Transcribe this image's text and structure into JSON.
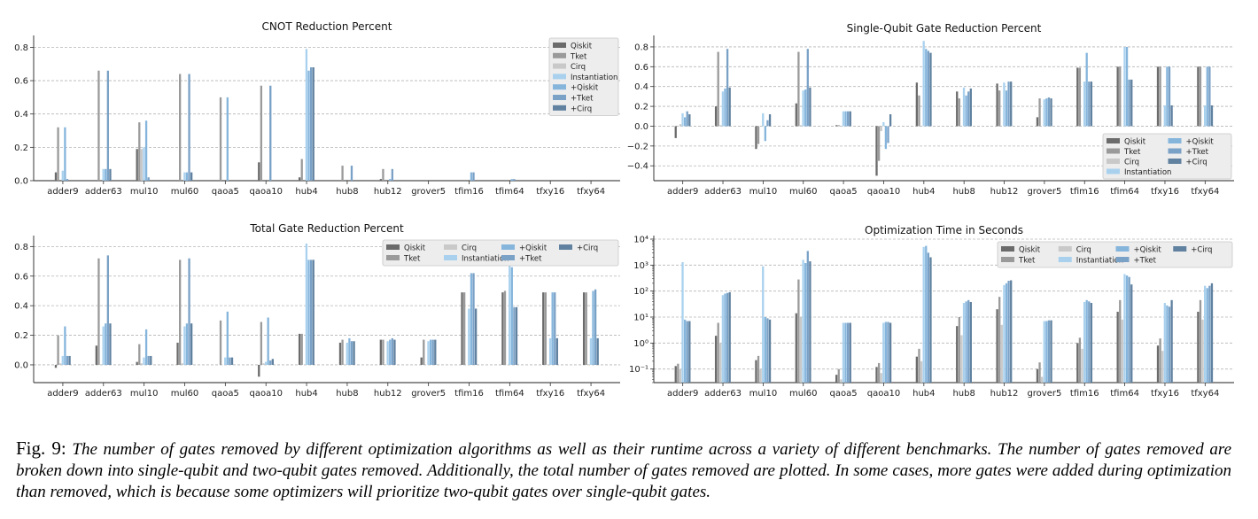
{
  "caption": {
    "label": "Fig. 9:",
    "text": "The number of gates removed by different optimization algorithms as well as their runtime across a variety of different benchmarks. The number of gates removed are broken down into single-qubit and two-qubit gates removed. Additionally, the total number of gates removed are plotted. In some cases, more gates were added during optimization than removed, which is because some optimizers will prioritize two-qubit gates over single-qubit gates."
  },
  "colors": {
    "Qiskit": "#6b6b6b",
    "Tket": "#9a9a9a",
    "Cirq": "#c9c9c9",
    "Instantiation": "#a9d1ee",
    "+Qiskit": "#86b5dc",
    "+Tket": "#7aa1c6",
    "+Cirq": "#60819f"
  },
  "chart_data": [
    {
      "type": "bar",
      "title": "CNOT Reduction Percent",
      "xlabel": "",
      "ylabel": "",
      "ylim": [
        0,
        0.85
      ],
      "yticks": [
        "0.0",
        "0.2",
        "0.4",
        "0.6",
        "0.8"
      ],
      "ytick_values": [
        0,
        0.2,
        0.4,
        0.6,
        0.8
      ],
      "grid": true,
      "legend": "top-right",
      "legend_cols": 1,
      "categories": [
        "adder9",
        "adder63",
        "mul10",
        "mul60",
        "qaoa5",
        "qaoa10",
        "hub4",
        "hub8",
        "hub12",
        "grover5",
        "tfim16",
        "tfim64",
        "tfxy16",
        "tfxy64"
      ],
      "series": [
        {
          "name": "Qiskit",
          "values": [
            0.05,
            0,
            0.19,
            0,
            0,
            0.11,
            0.02,
            0,
            0.01,
            0,
            0,
            0,
            0,
            0
          ]
        },
        {
          "name": "Tket",
          "values": [
            0.32,
            0.66,
            0.35,
            0.64,
            0.5,
            0.57,
            0.13,
            0.09,
            0.07,
            0,
            0,
            0,
            0,
            0
          ]
        },
        {
          "name": "Cirq",
          "values": [
            0,
            0,
            0.19,
            0,
            0,
            0,
            0,
            0,
            0,
            0,
            0,
            0,
            0,
            0
          ]
        },
        {
          "name": "Instantiation",
          "values": [
            0.06,
            0.07,
            0.2,
            0.05,
            0,
            0,
            0.79,
            0,
            0,
            0,
            0,
            0,
            0,
            0
          ]
        },
        {
          "name": "+Qiskit",
          "values": [
            0.32,
            0.07,
            0.36,
            0.05,
            0.5,
            0,
            0.66,
            0,
            0.01,
            0,
            0.05,
            0.01,
            0,
            0
          ]
        },
        {
          "name": "+Tket",
          "values": [
            0.01,
            0.66,
            0.02,
            0.64,
            0,
            0.57,
            0.68,
            0.09,
            0.07,
            0,
            0.05,
            0.01,
            0,
            0
          ]
        },
        {
          "name": "+Cirq",
          "values": [
            0,
            0.07,
            0,
            0.05,
            0,
            0,
            0.68,
            0,
            0,
            0,
            0,
            0,
            0,
            0
          ]
        }
      ]
    },
    {
      "type": "bar",
      "title": "Single-Qubit Gate Reduction Percent",
      "xlabel": "",
      "ylabel": "",
      "ylim": [
        -0.55,
        0.88
      ],
      "yticks": [
        "−0.4",
        "−0.2",
        "0.0",
        "0.2",
        "0.4",
        "0.6",
        "0.8"
      ],
      "ytick_values": [
        -0.4,
        -0.2,
        0,
        0.2,
        0.4,
        0.6,
        0.8
      ],
      "grid": true,
      "legend": "bottom-right",
      "legend_cols": 2,
      "categories": [
        "adder9",
        "adder63",
        "mul10",
        "mul60",
        "qaoa5",
        "qaoa10",
        "hub4",
        "hub8",
        "hub12",
        "grover5",
        "tfim16",
        "tfim64",
        "tfxy16",
        "tfxy64"
      ],
      "series": [
        {
          "name": "Qiskit",
          "values": [
            -0.12,
            0.2,
            -0.23,
            0.23,
            0.01,
            -0.5,
            0.44,
            0.35,
            0.43,
            0.09,
            0.59,
            0.6,
            0.6,
            0.6
          ]
        },
        {
          "name": "Tket",
          "values": [
            0,
            0.75,
            -0.18,
            0.75,
            0.01,
            -0.35,
            0.31,
            0.28,
            0.36,
            0.28,
            0.59,
            0.6,
            0.6,
            0.6
          ]
        },
        {
          "name": "Cirq",
          "values": [
            0.02,
            0.01,
            0,
            0.01,
            0,
            -0.05,
            0,
            0,
            0,
            0,
            0,
            0,
            0,
            0
          ]
        },
        {
          "name": "Instantiation",
          "values": [
            0.13,
            0.35,
            0.13,
            0.36,
            0.15,
            0.04,
            0.86,
            0.39,
            0.44,
            0.27,
            0.45,
            0.8,
            0.21,
            0.21
          ]
        },
        {
          "name": "+Qiskit",
          "values": [
            0.09,
            0.38,
            -0.15,
            0.37,
            0.15,
            -0.23,
            0.78,
            0.31,
            0.36,
            0.28,
            0.74,
            0.8,
            0.6,
            0.6
          ]
        },
        {
          "name": "+Tket",
          "values": [
            0.15,
            0.78,
            0.06,
            0.78,
            0.15,
            -0.17,
            0.76,
            0.35,
            0.45,
            0.29,
            0.45,
            0.47,
            0.6,
            0.6
          ]
        },
        {
          "name": "+Cirq",
          "values": [
            0.12,
            0.39,
            0.12,
            0.39,
            0.15,
            0.12,
            0.74,
            0.38,
            0.45,
            0.28,
            0.45,
            0.47,
            0.21,
            0.21
          ]
        }
      ]
    },
    {
      "type": "bar",
      "title": "Total Gate Reduction Percent",
      "xlabel": "",
      "ylabel": "",
      "ylim": [
        -0.12,
        0.85
      ],
      "yticks": [
        "0.0",
        "0.2",
        "0.4",
        "0.6",
        "0.8"
      ],
      "ytick_values": [
        0,
        0.2,
        0.4,
        0.6,
        0.8
      ],
      "grid": true,
      "legend": "top-right",
      "legend_cols": 4,
      "categories": [
        "adder9",
        "adder63",
        "mul10",
        "mul60",
        "qaoa5",
        "qaoa10",
        "hub4",
        "hub8",
        "hub12",
        "grover5",
        "tfim16",
        "tfim64",
        "tfxy16",
        "tfxy64"
      ],
      "series": [
        {
          "name": "Qiskit",
          "values": [
            -0.02,
            0.13,
            0.02,
            0.15,
            0,
            -0.08,
            0.21,
            0.15,
            0.17,
            0.05,
            0.49,
            0.49,
            0.49,
            0.49
          ]
        },
        {
          "name": "Tket",
          "values": [
            0.2,
            0.72,
            0.14,
            0.71,
            0.3,
            0.29,
            0.21,
            0.17,
            0.17,
            0.17,
            0.49,
            0.5,
            0.49,
            0.49
          ]
        },
        {
          "name": "Cirq",
          "values": [
            0.01,
            0,
            0.01,
            0.01,
            0,
            0.01,
            0,
            0,
            0,
            0,
            0,
            0,
            0,
            0
          ]
        },
        {
          "name": "Instantiation",
          "values": [
            0.06,
            0.26,
            0.05,
            0.26,
            0.05,
            0.02,
            0.82,
            0.15,
            0.16,
            0.16,
            0.38,
            0.67,
            0.18,
            0.18
          ]
        },
        {
          "name": "+Qiskit",
          "values": [
            0.26,
            0.28,
            0.24,
            0.28,
            0.36,
            0.32,
            0.71,
            0.18,
            0.17,
            0.17,
            0.62,
            0.66,
            0.49,
            0.5
          ]
        },
        {
          "name": "+Tket",
          "values": [
            0.06,
            0.74,
            0.06,
            0.72,
            0.05,
            0.03,
            0.71,
            0.16,
            0.18,
            0.17,
            0.62,
            0.39,
            0.49,
            0.51
          ]
        },
        {
          "name": "+Cirq",
          "values": [
            0.06,
            0.28,
            0.06,
            0.28,
            0.05,
            0.04,
            0.71,
            0.16,
            0.17,
            0.17,
            0.38,
            0.39,
            0.18,
            0.18
          ]
        }
      ]
    },
    {
      "type": "bar",
      "title": "Optimization Time in Seconds",
      "xlabel": "",
      "ylabel": "",
      "yscale": "log",
      "ylim": [
        0.03,
        10000
      ],
      "yticks": [
        "10⁻¹",
        "10⁰",
        "10¹",
        "10²",
        "10³",
        "10⁴"
      ],
      "ytick_values": [
        0.1,
        1,
        10,
        100,
        1000,
        10000
      ],
      "grid": true,
      "legend": "top-right",
      "legend_cols": 4,
      "categories": [
        "adder9",
        "adder63",
        "mul10",
        "mul60",
        "qaoa5",
        "qaoa10",
        "hub4",
        "hub8",
        "hub12",
        "grover5",
        "tfim16",
        "tfim64",
        "tfxy16",
        "tfxy64"
      ],
      "series": [
        {
          "name": "Qiskit",
          "values": [
            0.13,
            1.9,
            0.22,
            14,
            0.06,
            0.12,
            0.3,
            4.5,
            20,
            0.1,
            1,
            16,
            0.8,
            16
          ]
        },
        {
          "name": "Tket",
          "values": [
            0.16,
            6,
            0.32,
            280,
            0.1,
            0.17,
            0.6,
            10,
            60,
            0.18,
            1.6,
            45,
            1.5,
            45
          ]
        },
        {
          "name": "Cirq",
          "values": [
            0.1,
            1,
            0.1,
            10,
            0.04,
            0.07,
            0.2,
            2,
            5,
            0.05,
            0.6,
            8,
            0.5,
            8
          ]
        },
        {
          "name": "Instantiation",
          "values": [
            1300,
            70,
            900,
            1600,
            6,
            6,
            5000,
            35,
            170,
            7,
            38,
            450,
            35,
            160
          ]
        },
        {
          "name": "+Qiskit",
          "values": [
            8,
            80,
            10,
            1200,
            6,
            6.5,
            5500,
            40,
            200,
            7,
            45,
            400,
            28,
            130
          ]
        },
        {
          "name": "+Tket",
          "values": [
            7,
            85,
            9,
            3500,
            6,
            6.5,
            3000,
            45,
            250,
            7.5,
            40,
            350,
            25,
            160
          ]
        },
        {
          "name": "+Cirq",
          "values": [
            7,
            90,
            8,
            1400,
            6,
            6,
            2000,
            38,
            260,
            7.5,
            35,
            180,
            45,
            200
          ]
        }
      ]
    }
  ]
}
